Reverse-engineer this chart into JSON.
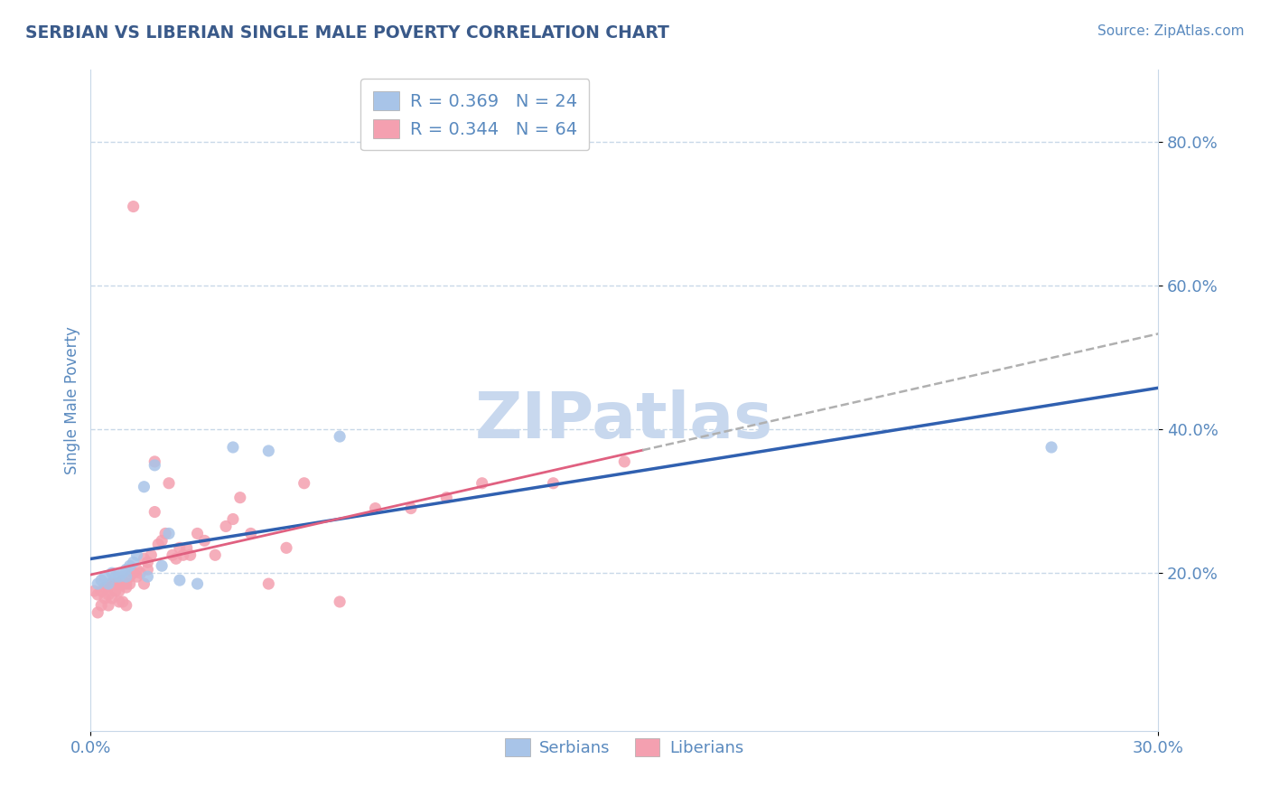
{
  "title": "SERBIAN VS LIBERIAN SINGLE MALE POVERTY CORRELATION CHART",
  "source": "Source: ZipAtlas.com",
  "ylabel": "Single Male Poverty",
  "xlim": [
    0.0,
    0.3
  ],
  "ylim": [
    -0.02,
    0.9
  ],
  "title_color": "#3a5a8a",
  "axis_color": "#5a8abf",
  "grid_color": "#c8d8e8",
  "background_color": "#ffffff",
  "serbian_color": "#a8c4e8",
  "liberian_color": "#f4a0b0",
  "serbian_line_color": "#3060b0",
  "liberian_line_color": "#e06080",
  "liberian_extrapolate_color": "#b0b0b0",
  "r_serbian": 0.369,
  "n_serbian": 24,
  "r_liberian": 0.344,
  "n_liberian": 64,
  "serbian_x": [
    0.002,
    0.003,
    0.004,
    0.005,
    0.006,
    0.007,
    0.008,
    0.009,
    0.01,
    0.01,
    0.011,
    0.012,
    0.013,
    0.015,
    0.016,
    0.018,
    0.02,
    0.022,
    0.025,
    0.03,
    0.04,
    0.05,
    0.07,
    0.27
  ],
  "serbian_y": [
    0.185,
    0.19,
    0.195,
    0.185,
    0.2,
    0.195,
    0.195,
    0.2,
    0.205,
    0.195,
    0.21,
    0.215,
    0.225,
    0.32,
    0.195,
    0.35,
    0.21,
    0.255,
    0.19,
    0.185,
    0.375,
    0.37,
    0.39,
    0.375
  ],
  "liberian_x": [
    0.001,
    0.002,
    0.002,
    0.003,
    0.003,
    0.004,
    0.004,
    0.005,
    0.005,
    0.005,
    0.006,
    0.006,
    0.007,
    0.007,
    0.008,
    0.008,
    0.008,
    0.009,
    0.009,
    0.009,
    0.01,
    0.01,
    0.01,
    0.011,
    0.011,
    0.012,
    0.012,
    0.013,
    0.013,
    0.014,
    0.015,
    0.015,
    0.016,
    0.016,
    0.017,
    0.018,
    0.018,
    0.019,
    0.02,
    0.021,
    0.022,
    0.023,
    0.024,
    0.025,
    0.026,
    0.027,
    0.028,
    0.03,
    0.032,
    0.035,
    0.038,
    0.04,
    0.042,
    0.045,
    0.05,
    0.055,
    0.06,
    0.07,
    0.08,
    0.09,
    0.1,
    0.11,
    0.13,
    0.15
  ],
  "liberian_y": [
    0.175,
    0.145,
    0.17,
    0.155,
    0.175,
    0.18,
    0.165,
    0.17,
    0.18,
    0.155,
    0.185,
    0.165,
    0.185,
    0.175,
    0.16,
    0.175,
    0.185,
    0.19,
    0.16,
    0.185,
    0.155,
    0.18,
    0.185,
    0.185,
    0.195,
    0.71,
    0.2,
    0.205,
    0.195,
    0.2,
    0.22,
    0.185,
    0.205,
    0.215,
    0.225,
    0.355,
    0.285,
    0.24,
    0.245,
    0.255,
    0.325,
    0.225,
    0.22,
    0.235,
    0.225,
    0.235,
    0.225,
    0.255,
    0.245,
    0.225,
    0.265,
    0.275,
    0.305,
    0.255,
    0.185,
    0.235,
    0.325,
    0.16,
    0.29,
    0.29,
    0.305,
    0.325,
    0.325,
    0.355
  ],
  "watermark_text": "ZIPatlas",
  "watermark_color": "#c8d8ee",
  "watermark_fontsize": 52
}
